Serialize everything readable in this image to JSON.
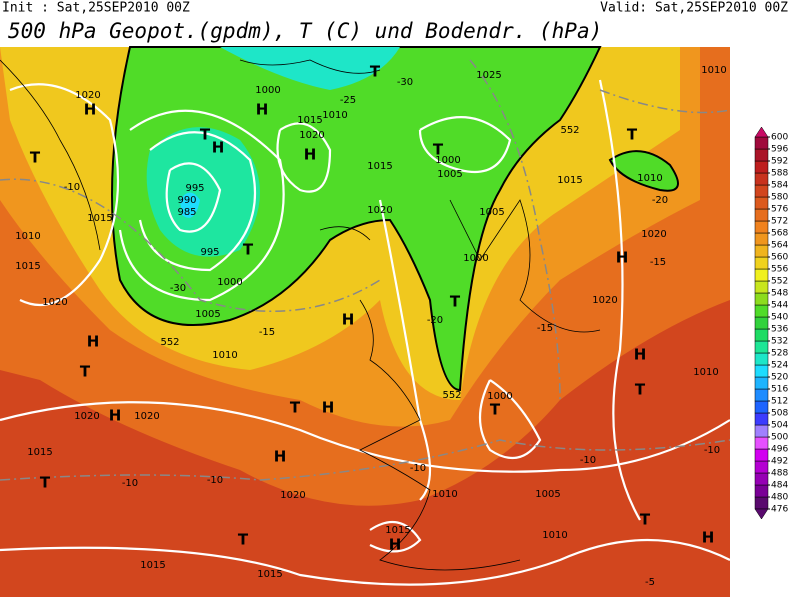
{
  "header": {
    "init": "Init : Sat,25SEP2010 00Z",
    "valid": "Valid: Sat,25SEP2010 00Z",
    "title": "500 hPa Geopot.(gpdm), T (C) und Bodendr. (hPa)"
  },
  "colorbar": {
    "values": [
      476,
      480,
      484,
      488,
      492,
      496,
      500,
      504,
      508,
      512,
      516,
      520,
      524,
      528,
      532,
      536,
      540,
      544,
      548,
      552,
      556,
      560,
      564,
      568,
      572,
      576,
      580,
      584,
      588,
      592,
      596,
      600
    ],
    "colors": [
      "#5a0a6e",
      "#7a0096",
      "#9600b4",
      "#b400d2",
      "#d200f0",
      "#e650ff",
      "#a080ff",
      "#3c3cff",
      "#1e64ff",
      "#1e8cff",
      "#1eb4ff",
      "#1edcff",
      "#1ee6c8",
      "#1ee696",
      "#1edc64",
      "#32d23c",
      "#50dc28",
      "#8cdc1e",
      "#c8e61e",
      "#f0f01e",
      "#f0d21e",
      "#f0b41e",
      "#f0961e",
      "#f0821e",
      "#e66e1e",
      "#dc5a1e",
      "#d2461e",
      "#c8321e",
      "#be1e1e",
      "#aa1428",
      "#a00a3c",
      "#c80a64"
    ]
  },
  "map_labels": [
    "H",
    "1020",
    "T",
    "-10",
    "1015",
    "1010",
    "1015",
    "1020",
    "H",
    "T",
    "1020",
    "H",
    "1020",
    "1015",
    "T",
    "-10",
    "995",
    "990",
    "985",
    "T",
    "995",
    "1000",
    "1005",
    "-30",
    "H",
    "T",
    "H",
    "H",
    "1020",
    "-10",
    "T",
    "1015",
    "1015",
    "1015",
    "H",
    "T",
    "-30",
    "1025",
    "552",
    "T",
    "1010",
    "-20",
    "1020",
    "H",
    "-15",
    "1020",
    "H",
    "T",
    "T",
    "1000",
    "1010",
    "1005",
    "-10",
    "-10",
    "T",
    "H",
    "1010",
    "1010",
    "-10",
    "1010",
    "-5",
    "1020",
    "T",
    "1015",
    "1000",
    "1005",
    "T",
    "H",
    "1015",
    "1020",
    "T",
    "H",
    "1000",
    "1010",
    "-25",
    "1015",
    "1005",
    "1000",
    "-15",
    "-20",
    "552",
    "552",
    "H",
    "1010",
    "-15"
  ]
}
